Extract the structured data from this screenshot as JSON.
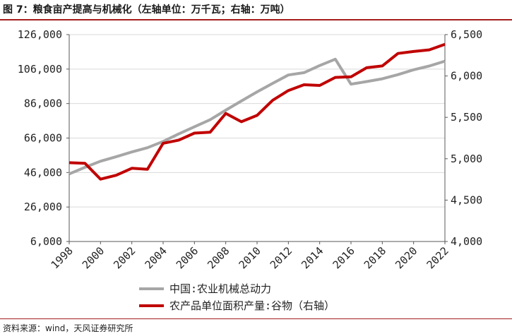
{
  "title": "图 7：粮食亩产提高与机械化（左轴单位：万千瓦；右轴：万吨）",
  "source": "资料来源：wind，天风证券研究所",
  "chart_data": {
    "type": "line",
    "x": [
      1998,
      1999,
      2000,
      2001,
      2002,
      2003,
      2004,
      2005,
      2006,
      2007,
      2008,
      2009,
      2010,
      2011,
      2012,
      2013,
      2014,
      2015,
      2016,
      2017,
      2018,
      2019,
      2020,
      2021,
      2022
    ],
    "x_ticks": [
      "1998",
      "2000",
      "2002",
      "2004",
      "2006",
      "2008",
      "2010",
      "2012",
      "2014",
      "2016",
      "2018",
      "2020",
      "2022"
    ],
    "y_left": {
      "min": 6000,
      "max": 126000,
      "ticks": [
        6000,
        26000,
        46000,
        66000,
        86000,
        106000,
        126000
      ],
      "tick_labels": [
        "6,000",
        "26,000",
        "46,000",
        "66,000",
        "86,000",
        "106,000",
        "126,000"
      ]
    },
    "y_right": {
      "min": 4000,
      "max": 6500,
      "ticks": [
        4000,
        4500,
        5000,
        5500,
        6000,
        6500
      ],
      "tick_labels": [
        "4,000",
        "4,500",
        "5,000",
        "5,500",
        "6,000",
        "6,500"
      ]
    },
    "grid": "horizontal",
    "legend_position": "bottom",
    "series": [
      {
        "name": "中国:农业机械总动力",
        "axis": "left",
        "color": "#a6a6a6",
        "values": [
          45208,
          48996,
          52574,
          55172,
          57930,
          60387,
          64028,
          68398,
          72522,
          76590,
          82190,
          87496,
          92781,
          97735,
          102559,
          103907,
          108057,
          111728,
          97246,
          98783,
          100372,
          102758,
          105622,
          107768,
          110597
        ]
      },
      {
        "name": "农产品单位面积产量:谷物（右轴）",
        "axis": "right",
        "color": "#c00000",
        "values": [
          4952,
          4945,
          4753,
          4800,
          4885,
          4873,
          5187,
          5225,
          5310,
          5320,
          5548,
          5447,
          5524,
          5707,
          5824,
          5894,
          5886,
          5983,
          5990,
          6100,
          6121,
          6272,
          6296,
          6316,
          6383
        ]
      }
    ]
  }
}
